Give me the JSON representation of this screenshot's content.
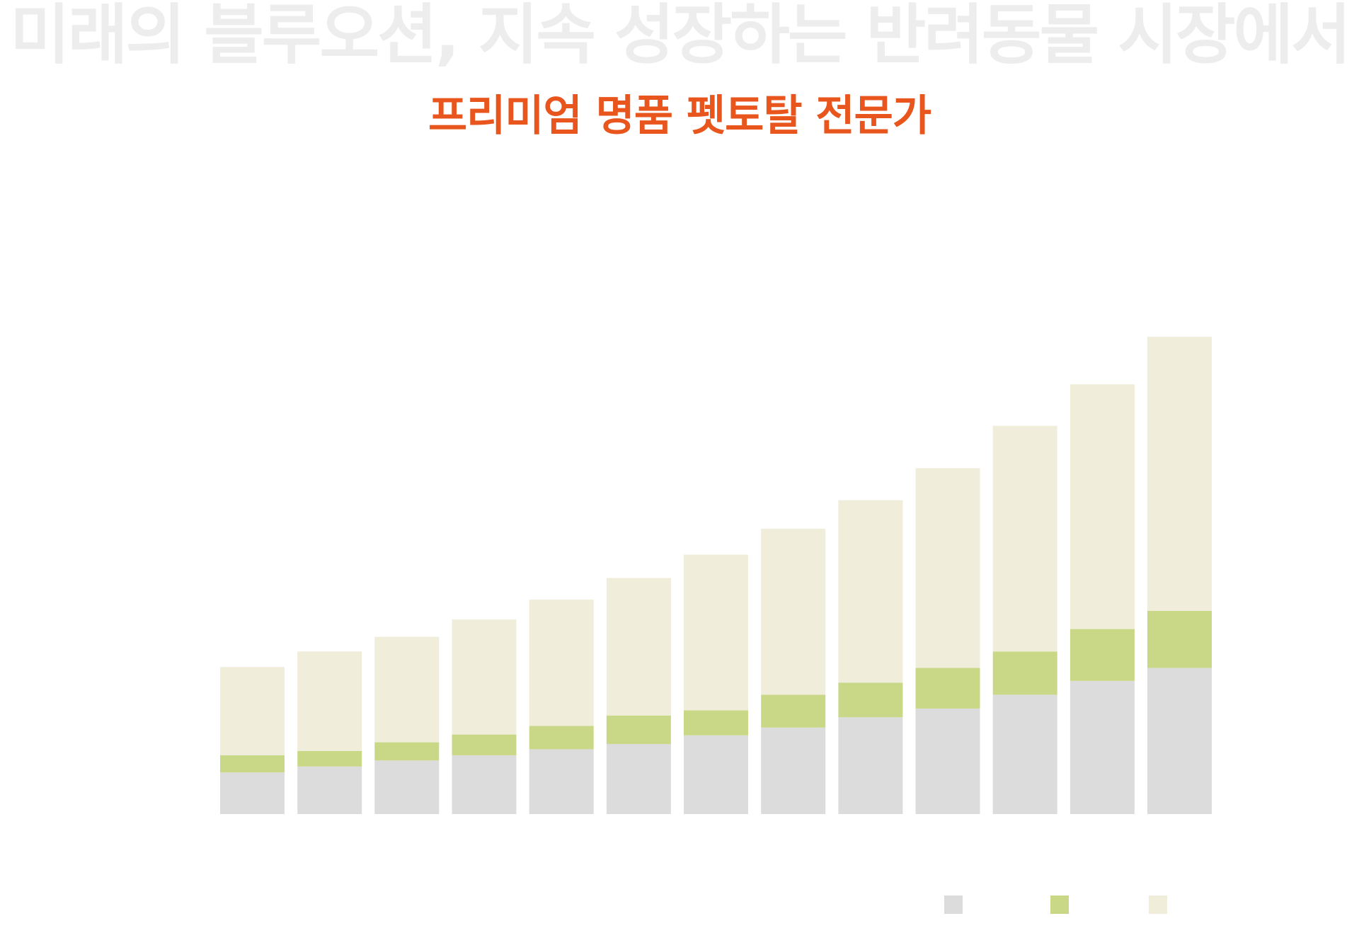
{
  "headline": "미래의 블루오션, 지속 성장하는 반려동물 시장에서",
  "subheadline": "프리미엄 명품 펫토탈 전문가",
  "colors": {
    "headline": "#ededed",
    "subheadline": "#e8561e"
  },
  "chart_data": {
    "type": "bar",
    "stacked": true,
    "categories": [
      "",
      "",
      "",
      "",
      "",
      "",
      "",
      "",
      "",
      "",
      "",
      "",
      ""
    ],
    "series": [
      {
        "color": "#dcdcdc",
        "values": [
          48,
          55,
          62,
          68,
          75,
          81,
          91,
          100,
          112,
          122,
          138,
          154,
          169
        ]
      },
      {
        "color": "#c9d886",
        "values": [
          20,
          18,
          21,
          24,
          27,
          33,
          29,
          38,
          40,
          47,
          50,
          60,
          66
        ]
      },
      {
        "color": "#f0eddb",
        "values": [
          102,
          115,
          122,
          133,
          146,
          159,
          180,
          192,
          211,
          231,
          261,
          283,
          317
        ]
      }
    ],
    "ylim": [
      0,
      555
    ],
    "legend": "bottom-right",
    "grid": false,
    "axes_visible": false
  }
}
